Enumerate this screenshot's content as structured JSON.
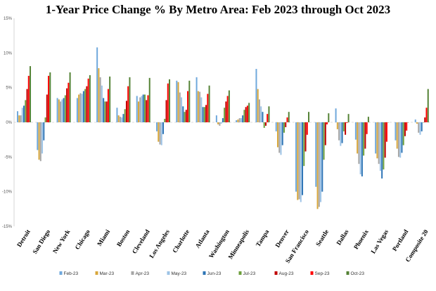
{
  "chart_data": {
    "type": "bar",
    "title": "1-Year Price Change % By Metro Area: Feb 2023 through Oct 2023",
    "ylim": [
      -15,
      15
    ],
    "y_ticks": [
      "15%",
      "10%",
      "5%",
      "0%",
      "-5%",
      "-10%",
      "-15%"
    ],
    "grid": false,
    "legend_position": "bottom",
    "categories": [
      "Detroit",
      "San Diego",
      "New York",
      "Chicago",
      "Miami",
      "Boston",
      "Cleveland",
      "Los Angeles",
      "Charlotte",
      "Atlanta",
      "Washington",
      "Minneapolis",
      "Tampa",
      "Denver",
      "San Francisco",
      "Seattle",
      "Dallas",
      "Phoenix",
      "Las Vegas",
      "Portland",
      "Composite 20"
    ],
    "series": [
      {
        "name": "Feb-23",
        "color": "#6fa8dc",
        "values": [
          1.6,
          -4.0,
          3.5,
          3.5,
          10.8,
          2.1,
          3.8,
          -1.3,
          6.0,
          6.5,
          1.0,
          0.3,
          7.7,
          -1.3,
          -10.0,
          -9.3,
          2.0,
          -2.5,
          -4.5,
          -2.6,
          0.4
        ]
      },
      {
        "name": "Mar-23",
        "color": "#d8a73c",
        "values": [
          1.0,
          -5.4,
          3.3,
          4.0,
          7.8,
          1.0,
          3.0,
          -2.8,
          5.8,
          4.5,
          -0.3,
          0.4,
          4.8,
          -3.6,
          -11.2,
          -12.5,
          -1.0,
          -4.5,
          -5.2,
          -3.8,
          -0.2
        ]
      },
      {
        "name": "Apr-23",
        "color": "#a6a6a6",
        "values": [
          1.0,
          -5.6,
          3.0,
          4.2,
          6.5,
          0.8,
          3.6,
          -3.2,
          4.3,
          4.4,
          -0.5,
          0.6,
          3.3,
          -4.4,
          -11.1,
          -12.2,
          -2.6,
          -6.0,
          -6.0,
          -5.0,
          -1.5
        ]
      },
      {
        "name": "May-23",
        "color": "#9dc3e6",
        "values": [
          2.1,
          -4.5,
          3.3,
          4.1,
          5.3,
          0.7,
          3.8,
          -3.3,
          3.6,
          3.6,
          -0.2,
          0.6,
          2.3,
          -4.7,
          -11.5,
          -11.5,
          -3.4,
          -7.5,
          -7.0,
          -5.1,
          -1.8
        ]
      },
      {
        "name": "Jun-23",
        "color": "#2e75b6",
        "values": [
          2.4,
          -2.6,
          3.5,
          4.5,
          3.5,
          1.2,
          4.0,
          -1.7,
          2.3,
          2.2,
          0.6,
          1.0,
          1.5,
          -3.3,
          -10.5,
          -10.0,
          -3.0,
          -7.8,
          -8.1,
          -4.4,
          -1.3
        ]
      },
      {
        "name": "Jul-23",
        "color": "#6d9f3c",
        "values": [
          3.2,
          0.7,
          3.9,
          4.8,
          3.0,
          1.9,
          4.0,
          0.5,
          1.5,
          2.2,
          2.1,
          1.8,
          -0.8,
          -1.5,
          -6.3,
          -5.4,
          -1.3,
          -4.8,
          -6.8,
          -3.3,
          0.0
        ]
      },
      {
        "name": "Aug-23",
        "color": "#c00000",
        "values": [
          4.8,
          4.0,
          4.9,
          5.2,
          3.0,
          3.1,
          3.2,
          3.2,
          1.8,
          2.5,
          3.0,
          2.2,
          -0.5,
          -0.7,
          -4.2,
          -3.3,
          -1.8,
          -3.8,
          -5.1,
          -2.0,
          0.7
        ]
      },
      {
        "name": "Sep-23",
        "color": "#ff0000",
        "values": [
          6.7,
          6.7,
          5.7,
          6.3,
          4.8,
          5.2,
          3.9,
          5.6,
          4.5,
          4.1,
          3.8,
          2.4,
          1.2,
          0.7,
          -1.8,
          -0.3,
          -0.1,
          -1.7,
          -2.8,
          -1.2,
          2.1
        ]
      },
      {
        "name": "Oct-23",
        "color": "#548235",
        "values": [
          8.1,
          7.2,
          7.2,
          6.8,
          6.6,
          6.5,
          6.4,
          6.2,
          6.0,
          5.3,
          4.6,
          2.8,
          2.3,
          1.5,
          1.5,
          1.3,
          1.2,
          0.8,
          0.0,
          0.0,
          4.8
        ]
      }
    ]
  }
}
